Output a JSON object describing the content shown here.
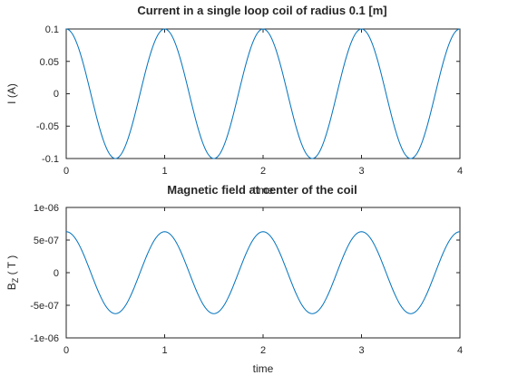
{
  "chart_data": [
    {
      "type": "line",
      "title": "Current in a single loop coil of radius 0.1 [m]",
      "xlabel": "time",
      "ylabel": "I (A)",
      "xlim": [
        0,
        4
      ],
      "ylim": [
        -0.1,
        0.1
      ],
      "xticks": [
        "0",
        "1",
        "2",
        "3",
        "4"
      ],
      "yticks": [
        "-0.1",
        "-0.05",
        "0",
        "0.05",
        "0.1"
      ],
      "grid": false,
      "line_color": "#0072bd",
      "series": [
        {
          "function": "cos(2*pi*t)",
          "amplitude": 0.1,
          "period": 1,
          "x": [
            0,
            0.25,
            0.5,
            0.75,
            1,
            1.25,
            1.5,
            1.75,
            2,
            2.25,
            2.5,
            2.75,
            3,
            3.25,
            3.5,
            3.75,
            4
          ],
          "y": [
            0.1,
            0,
            -0.1,
            0,
            0.1,
            0,
            -0.1,
            0,
            0.1,
            0,
            -0.1,
            0,
            0.1,
            0,
            -0.1,
            0,
            0.1
          ]
        }
      ]
    },
    {
      "type": "line",
      "title": "Magnetic field at center of the coil",
      "xlabel": "time",
      "ylabel": "B",
      "ylabel_subscript": "Z",
      "ylabel_suffix": " ( T )",
      "xlim": [
        0,
        4
      ],
      "ylim": [
        -1e-06,
        1e-06
      ],
      "xticks": [
        "0",
        "1",
        "2",
        "3",
        "4"
      ],
      "yticks": [
        "-1e-06",
        "-5e-07",
        "0",
        "5e-07",
        "1e-06"
      ],
      "grid": false,
      "line_color": "#0072bd",
      "series": [
        {
          "function": "cos(2*pi*t)",
          "amplitude": 6.28e-07,
          "period": 1,
          "x": [
            0,
            0.25,
            0.5,
            0.75,
            1,
            1.25,
            1.5,
            1.75,
            2,
            2.25,
            2.5,
            2.75,
            3,
            3.25,
            3.5,
            3.75,
            4
          ],
          "y": [
            6.28e-07,
            0,
            -6.28e-07,
            0,
            6.28e-07,
            0,
            -6.28e-07,
            0,
            6.28e-07,
            0,
            -6.28e-07,
            0,
            6.28e-07,
            0,
            -6.28e-07,
            0,
            6.28e-07
          ]
        }
      ]
    }
  ]
}
